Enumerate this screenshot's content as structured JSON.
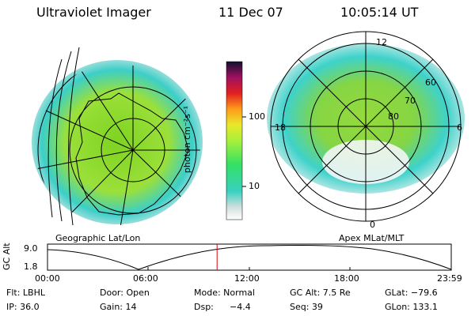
{
  "header": {
    "instrument": "Ultraviolet Imager",
    "date": "11 Dec 07",
    "time": "10:05:14 UT"
  },
  "left_panel": {
    "caption": "Geographic Lat/Lon"
  },
  "right_panel": {
    "caption": "Apex MLat/MLT",
    "mlt_labels": [
      "12",
      "18",
      "6",
      "0"
    ],
    "lat_labels": [
      "60",
      "70",
      "80"
    ]
  },
  "colorbar": {
    "unit_label": "photon cm⁻²s⁻¹",
    "ticks": [
      "100",
      "10"
    ]
  },
  "altitude_plot": {
    "ylabel": "GC Alt",
    "y_ticks": [
      "9.0",
      "1.8"
    ],
    "x_ticks": [
      "00:00",
      "06:00",
      "12:00",
      "18:00",
      "23:59"
    ],
    "current_time_fraction": 0.42
  },
  "info": {
    "flt": "Flt: LBHL",
    "door": "Door: Open",
    "mode": "Mode: Normal",
    "gc_alt": "GC Alt: 7.5 Re",
    "glat": "GLat: −79.6",
    "ip": "IP: 36.0",
    "gain": "Gain: 14",
    "dsp_label": "Dsp:",
    "dsp_value": "−4.4",
    "seq": "Seq: 39",
    "glon": "GLon: 133.1"
  },
  "colors": {
    "time_marker": "#e00000"
  }
}
